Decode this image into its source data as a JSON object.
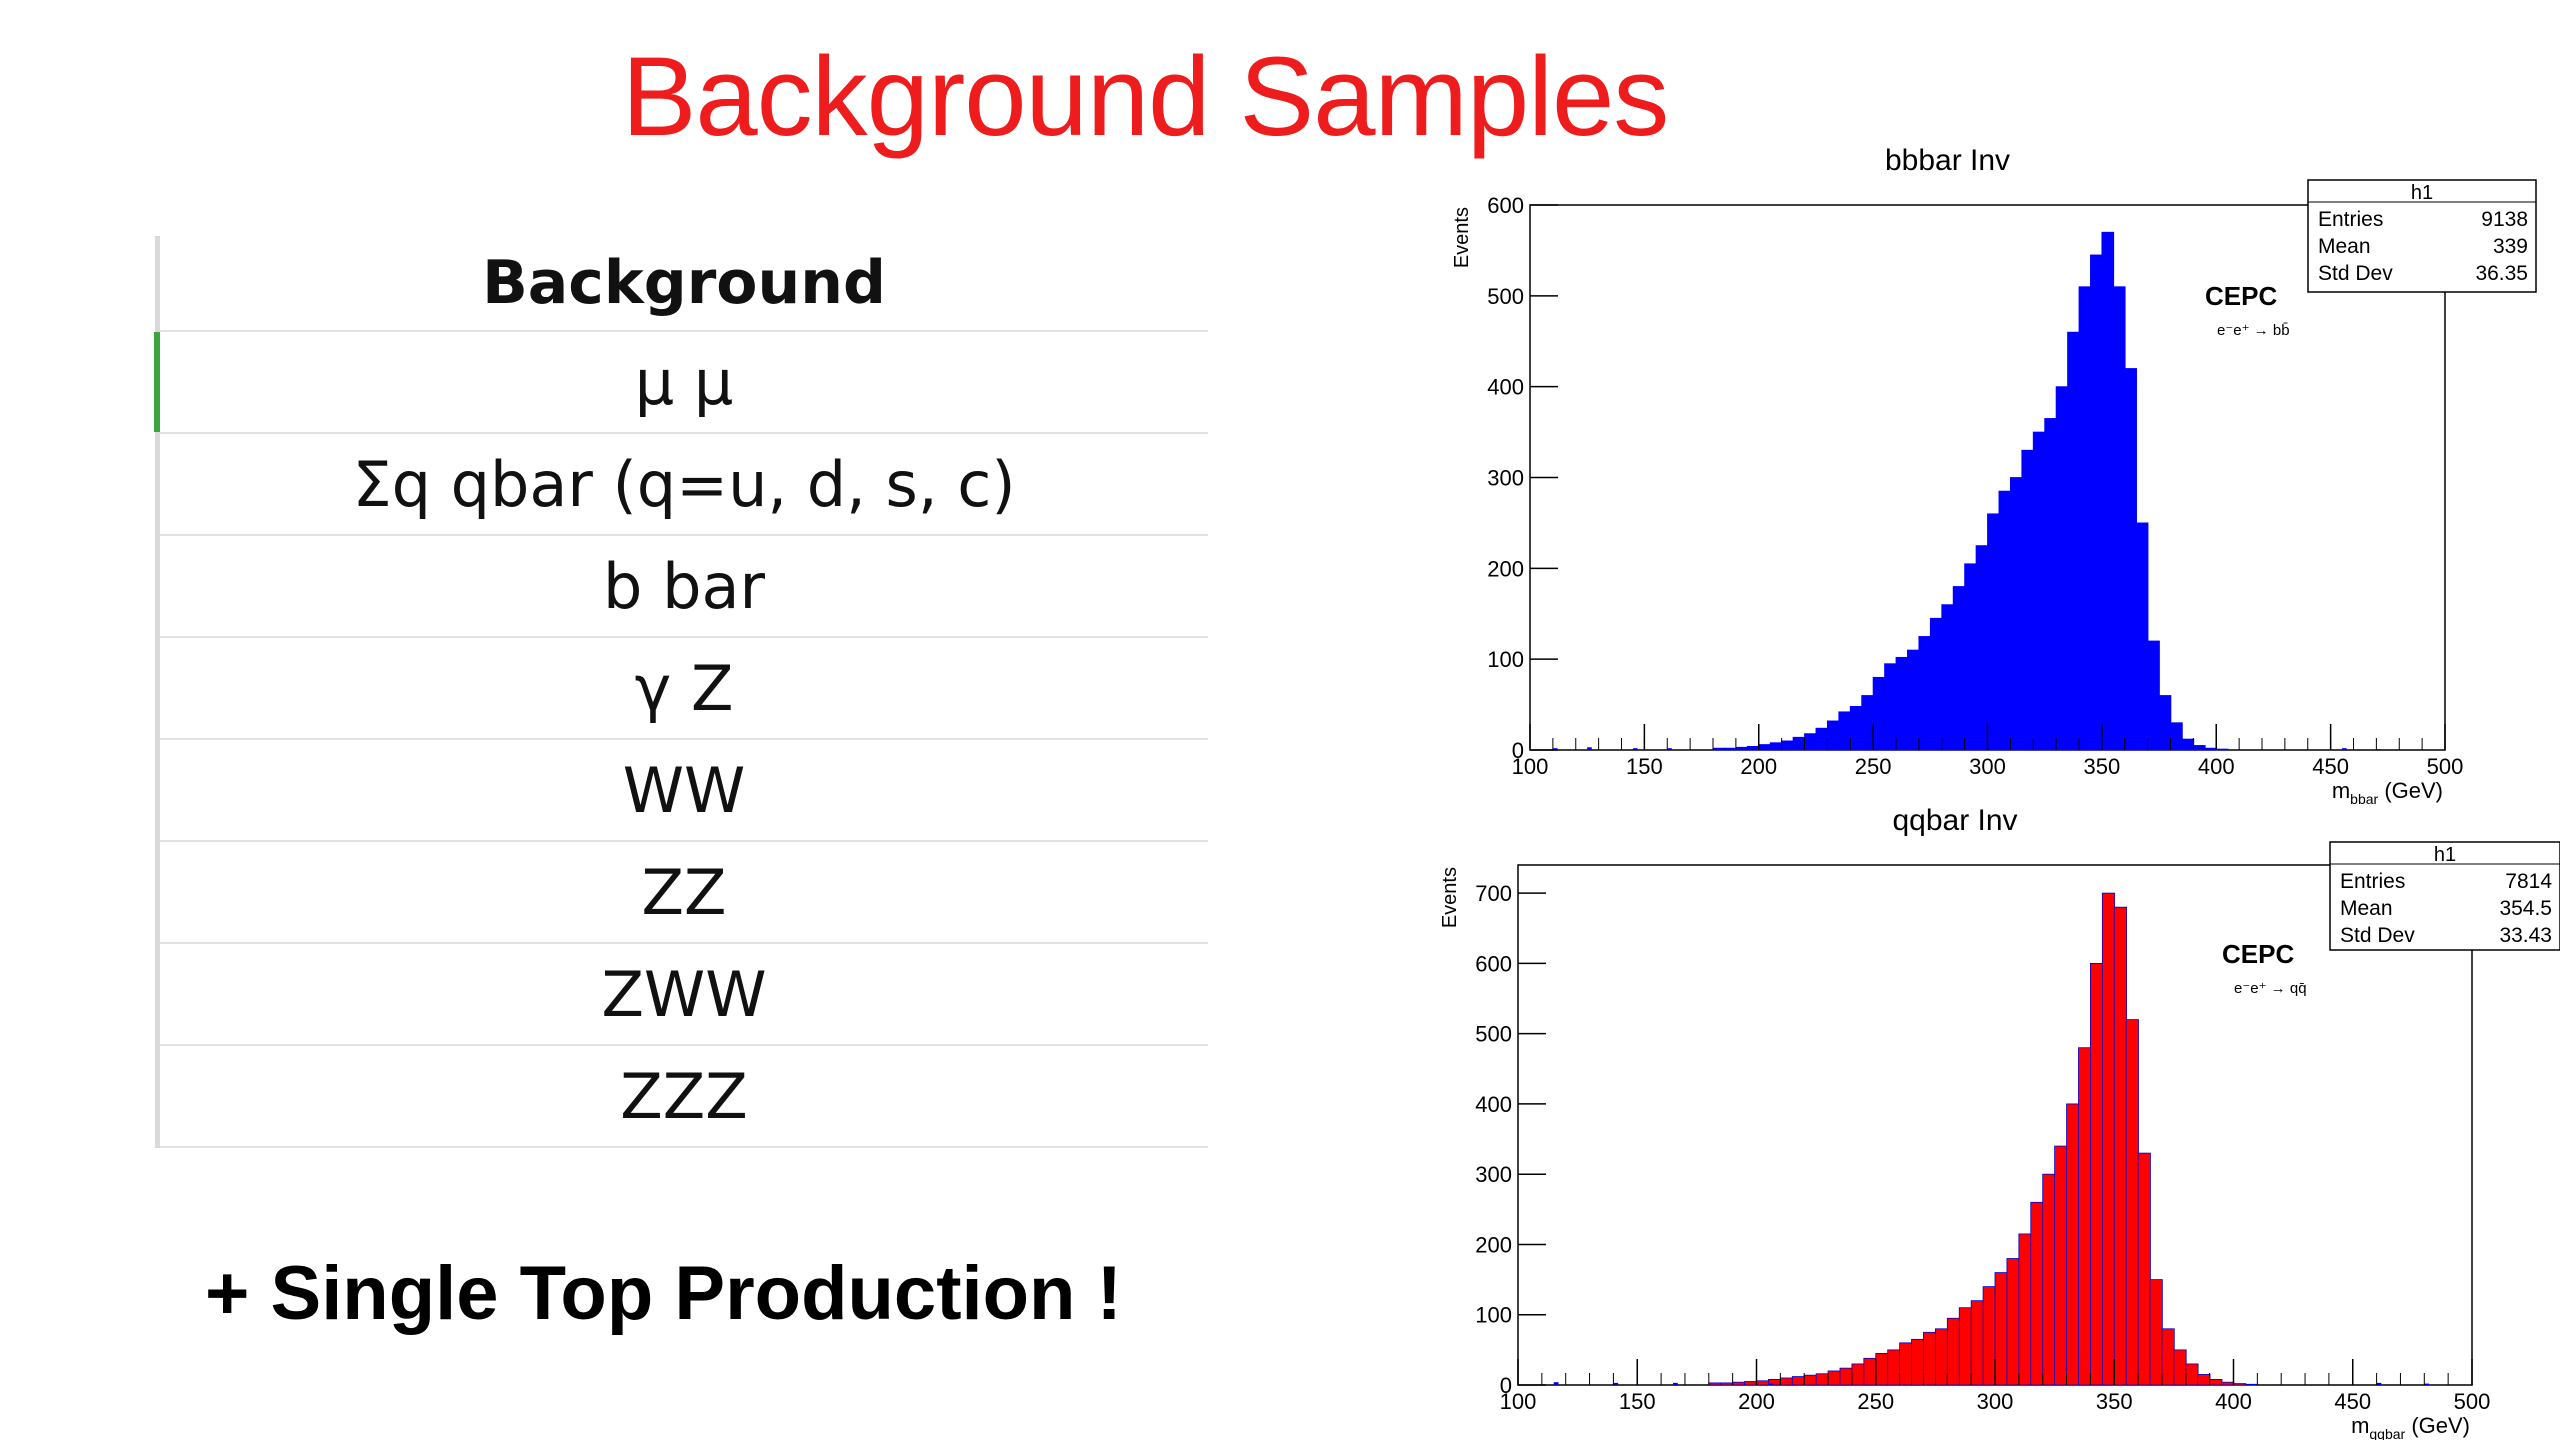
{
  "slide": {
    "title": "Background Samples",
    "footnote": "+ Single Top Production !"
  },
  "table": {
    "header": "Background",
    "rows": [
      "μ μ",
      "Σq qbar (q=u, d, s, c)",
      "b bar",
      "γ Z",
      "WW",
      "ZZ",
      "ZWW",
      "ZZZ"
    ]
  },
  "colors": {
    "title": "#ee1c1c",
    "bbbar_fill": "#0000ff",
    "qqbar_fill": "#ff0000",
    "qqbar_edge": "#0000cc",
    "table_marker": "#3fa33f"
  },
  "chart_data": [
    {
      "type": "bar",
      "title": "bbbar Inv",
      "ylabel": "Events",
      "xlabel_main": "m",
      "xlabel_sub": "bbar",
      "xlabel_unit": "(GeV)",
      "xlim": [
        100,
        500
      ],
      "ylim": [
        0,
        600
      ],
      "xticks": [
        100,
        150,
        200,
        250,
        300,
        350,
        400,
        450,
        500
      ],
      "yticks": [
        0,
        100,
        200,
        300,
        400,
        500,
        600
      ],
      "legend": {
        "name": "h1",
        "labels": [
          "Entries",
          "Mean",
          "Std Dev"
        ],
        "values": [
          "9138",
          "339",
          "36.35"
        ]
      },
      "annotation": {
        "label": "CEPC",
        "process": "e⁻e⁺ → bb̄"
      },
      "bin_start": 100,
      "bin_width": 5,
      "values": [
        0,
        0,
        0,
        0,
        0,
        0,
        0,
        0,
        0,
        0,
        0,
        0,
        0,
        0,
        0,
        0,
        2,
        2,
        3,
        4,
        6,
        8,
        10,
        14,
        18,
        24,
        32,
        42,
        48,
        60,
        80,
        95,
        102,
        110,
        125,
        145,
        160,
        180,
        205,
        225,
        260,
        285,
        300,
        330,
        350,
        365,
        400,
        460,
        510,
        545,
        570,
        510,
        420,
        250,
        120,
        60,
        30,
        12,
        5,
        2,
        1,
        0,
        0,
        0,
        0,
        0,
        0,
        0,
        0,
        0,
        0,
        0,
        0,
        0,
        0,
        0,
        0,
        0,
        0,
        0
      ],
      "stray_bins": [
        [
          110,
          2
        ],
        [
          125,
          3
        ],
        [
          145,
          2
        ],
        [
          160,
          2
        ],
        [
          455,
          2
        ],
        [
          470,
          1
        ]
      ]
    },
    {
      "type": "bar",
      "title": "qqbar Inv",
      "ylabel": "Events",
      "xlabel_main": "m",
      "xlabel_sub": "qqbar",
      "xlabel_unit": "(GeV)",
      "xlim": [
        100,
        500
      ],
      "ylim": [
        0,
        740
      ],
      "xticks": [
        100,
        150,
        200,
        250,
        300,
        350,
        400,
        450,
        500
      ],
      "yticks": [
        0,
        100,
        200,
        300,
        400,
        500,
        600,
        700
      ],
      "legend": {
        "name": "h1",
        "labels": [
          "Entries",
          "Mean",
          "Std Dev"
        ],
        "values": [
          "7814",
          "354.5",
          "33.43"
        ]
      },
      "annotation": {
        "label": "CEPC",
        "process": "e⁻e⁺ → qq̄"
      },
      "bin_start": 100,
      "bin_width": 5,
      "values": [
        0,
        0,
        0,
        0,
        0,
        0,
        0,
        0,
        0,
        0,
        0,
        0,
        0,
        0,
        0,
        0,
        3,
        3,
        4,
        5,
        6,
        8,
        10,
        12,
        14,
        16,
        20,
        24,
        30,
        38,
        45,
        50,
        60,
        65,
        75,
        80,
        95,
        110,
        120,
        140,
        160,
        180,
        215,
        260,
        300,
        340,
        400,
        480,
        600,
        700,
        680,
        520,
        330,
        150,
        80,
        50,
        30,
        15,
        8,
        4,
        2,
        1,
        0,
        0,
        0,
        0,
        0,
        0,
        0,
        0,
        0,
        0,
        0,
        0,
        0,
        0,
        0,
        0,
        0,
        0
      ],
      "stray_bins": [
        [
          115,
          4
        ],
        [
          140,
          3
        ],
        [
          165,
          3
        ],
        [
          205,
          2
        ],
        [
          460,
          3
        ],
        [
          480,
          2
        ]
      ]
    }
  ]
}
